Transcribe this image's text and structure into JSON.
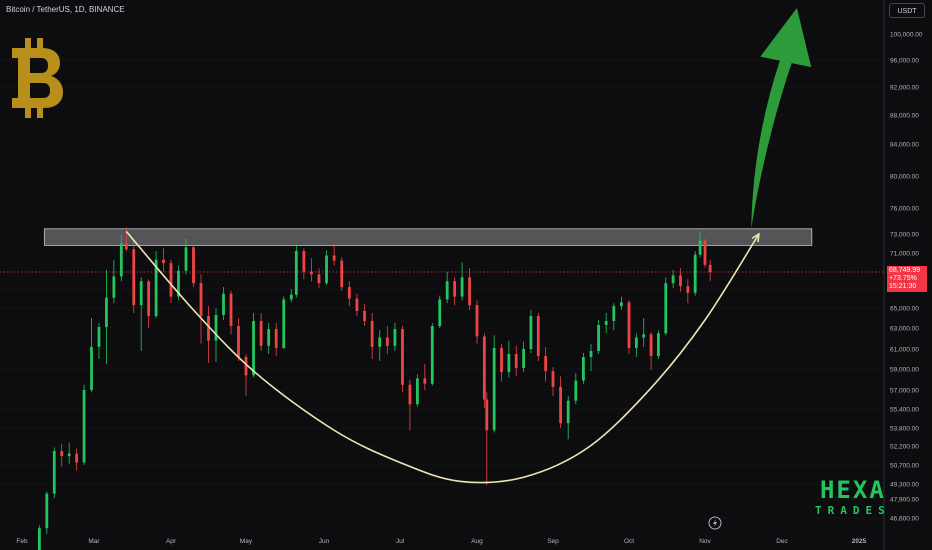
{
  "header": {
    "symbol_title": "Bitcoin / TetherUS, 1D, BINANCE",
    "currency_button": "USDT"
  },
  "price_tag": {
    "price": "68,749.99",
    "change": "+73.75%",
    "timer": "15:21:30"
  },
  "brand": {
    "line1": "HEXA",
    "line2": "TRADES",
    "logo_icon": "bitcoin-logo-icon",
    "platform_icon": "tradingview-icon"
  },
  "colors": {
    "background": "#0d0d0f",
    "up": "#22c55e",
    "down": "#ef4444",
    "resistance_zone": "#8f9094",
    "cup_curve": "#f0e6b4",
    "arrow": "#2e9b3a",
    "btc_logo": "#b98f1c",
    "last_price_line": "#f23645"
  },
  "chart_data": {
    "type": "candlestick",
    "symbol": "Bitcoin / TetherUS",
    "interval": "1D",
    "exchange": "BINANCE",
    "x_ticks": [
      "Feb",
      "Mar",
      "Apr",
      "May",
      "Jun",
      "Jul",
      "Aug",
      "Sep",
      "Oct",
      "Nov",
      "Dec",
      "2025"
    ],
    "y_ticks": [
      100000,
      96000,
      92000,
      88000,
      84000,
      80000,
      76000,
      73000,
      71000,
      68749.99,
      67000,
      65000,
      63000,
      61000,
      59000,
      57000,
      55400,
      53800,
      52200,
      50700,
      49300,
      47900,
      46600
    ],
    "y_tick_labels": [
      "100,000.00",
      "96,000.00",
      "92,000.00",
      "88,000.00",
      "84,000.00",
      "80,000.00",
      "76,000.00",
      "73,000.00",
      "71,000.00",
      "68,749.99",
      "67,000.00",
      "65,000.00",
      "63,000.00",
      "61,000.00",
      "59,000.00",
      "57,000.00",
      "55,400.00",
      "53,800.00",
      "52,200.00",
      "50,700.00",
      "49,300.00",
      "47,900.00",
      "46,600.00"
    ],
    "last_price": 68749.99,
    "ohlc": [
      [
        "2024-02-05",
        43000,
        44000,
        42600,
        43800
      ],
      [
        "2024-02-08",
        43800,
        46100,
        43600,
        45900
      ],
      [
        "2024-02-11",
        45900,
        48600,
        45500,
        48400
      ],
      [
        "2024-02-14",
        48400,
        52100,
        48000,
        51800
      ],
      [
        "2024-02-17",
        51800,
        52400,
        50600,
        51400
      ],
      [
        "2024-02-20",
        51400,
        52500,
        50800,
        51600
      ],
      [
        "2024-02-23",
        51600,
        52000,
        50300,
        50900
      ],
      [
        "2024-02-26",
        50900,
        57500,
        50700,
        57000
      ],
      [
        "2024-02-29",
        57000,
        64000,
        56800,
        61200
      ],
      [
        "2024-03-03",
        61200,
        63500,
        60000,
        63100
      ],
      [
        "2024-03-06",
        63100,
        69000,
        59500,
        66100
      ],
      [
        "2024-03-09",
        66100,
        70200,
        65500,
        68300
      ],
      [
        "2024-03-12",
        68300,
        72900,
        67800,
        72000
      ],
      [
        "2024-03-14",
        72000,
        73750,
        71200,
        71400
      ],
      [
        "2024-03-17",
        71400,
        72300,
        64500,
        65300
      ],
      [
        "2024-03-20",
        65300,
        68200,
        60800,
        67800
      ],
      [
        "2024-03-23",
        67800,
        68000,
        63000,
        64200
      ],
      [
        "2024-03-26",
        64200,
        71200,
        64000,
        70200
      ],
      [
        "2024-03-29",
        70200,
        71500,
        68800,
        69800
      ],
      [
        "2024-04-01",
        69800,
        70200,
        65500,
        66200
      ],
      [
        "2024-04-04",
        66200,
        69500,
        65800,
        68900
      ],
      [
        "2024-04-07",
        68900,
        72500,
        68500,
        71600
      ],
      [
        "2024-04-10",
        71600,
        71800,
        67200,
        67600
      ],
      [
        "2024-04-13",
        67600,
        68500,
        61500,
        64200
      ],
      [
        "2024-04-16",
        64200,
        65200,
        59600,
        61800
      ],
      [
        "2024-04-19",
        61800,
        65000,
        59700,
        64300
      ],
      [
        "2024-04-22",
        64300,
        67200,
        63800,
        66500
      ],
      [
        "2024-04-25",
        66500,
        66800,
        62400,
        63200
      ],
      [
        "2024-04-28",
        63200,
        64000,
        59800,
        60200
      ],
      [
        "2024-05-01",
        60200,
        60500,
        56500,
        58400
      ],
      [
        "2024-05-04",
        58400,
        64500,
        58200,
        63700
      ],
      [
        "2024-05-07",
        63700,
        64500,
        60800,
        61300
      ],
      [
        "2024-05-10",
        61300,
        63500,
        60500,
        62900
      ],
      [
        "2024-05-13",
        62900,
        63500,
        60300,
        61100
      ],
      [
        "2024-05-16",
        61100,
        66200,
        61000,
        65900
      ],
      [
        "2024-05-19",
        65900,
        67000,
        65600,
        66400
      ],
      [
        "2024-05-21",
        66400,
        71900,
        66100,
        71200
      ],
      [
        "2024-05-24",
        71200,
        71500,
        68000,
        68800
      ],
      [
        "2024-05-27",
        68800,
        70400,
        67800,
        68500
      ],
      [
        "2024-05-30",
        68500,
        69200,
        67100,
        67600
      ],
      [
        "2024-06-02",
        67600,
        71300,
        67400,
        70700
      ],
      [
        "2024-06-05",
        70700,
        71900,
        69500,
        70100
      ],
      [
        "2024-06-08",
        70100,
        70500,
        66800,
        67200
      ],
      [
        "2024-06-11",
        67200,
        67800,
        65200,
        66000
      ],
      [
        "2024-06-14",
        66000,
        66500,
        64200,
        64700
      ],
      [
        "2024-06-17",
        64700,
        65400,
        63200,
        63700
      ],
      [
        "2024-06-20",
        63700,
        64500,
        60000,
        61200
      ],
      [
        "2024-06-23",
        61200,
        62800,
        59800,
        62100
      ],
      [
        "2024-06-26",
        62100,
        63200,
        60500,
        61300
      ],
      [
        "2024-06-29",
        61300,
        63500,
        60800,
        62900
      ],
      [
        "2024-07-02",
        62900,
        63200,
        56800,
        57500
      ],
      [
        "2024-07-05",
        57500,
        58000,
        53600,
        55800
      ],
      [
        "2024-07-08",
        55800,
        58500,
        55600,
        58100
      ],
      [
        "2024-07-11",
        58100,
        59500,
        57000,
        57600
      ],
      [
        "2024-07-14",
        57600,
        63500,
        57400,
        63200
      ],
      [
        "2024-07-17",
        63200,
        66300,
        63000,
        65900
      ],
      [
        "2024-07-20",
        65900,
        68800,
        65500,
        67800
      ],
      [
        "2024-07-23",
        67800,
        68200,
        65300,
        66200
      ],
      [
        "2024-07-26",
        66200,
        69900,
        65800,
        68200
      ],
      [
        "2024-07-29",
        68200,
        69200,
        64800,
        65300
      ],
      [
        "2024-08-01",
        65300,
        65800,
        61500,
        62200
      ],
      [
        "2024-08-04",
        62200,
        62500,
        55500,
        56200
      ],
      [
        "2024-08-05",
        56200,
        56800,
        49200,
        53600
      ],
      [
        "2024-08-08",
        53600,
        62300,
        53400,
        61100
      ],
      [
        "2024-08-11",
        61100,
        61500,
        57800,
        58700
      ],
      [
        "2024-08-14",
        58700,
        61800,
        58200,
        60500
      ],
      [
        "2024-08-17",
        60500,
        61300,
        58300,
        59100
      ],
      [
        "2024-08-20",
        59100,
        61700,
        58700,
        61000
      ],
      [
        "2024-08-23",
        61000,
        64800,
        60600,
        64200
      ],
      [
        "2024-08-26",
        64200,
        64500,
        59800,
        60300
      ],
      [
        "2024-08-29",
        60300,
        61200,
        57800,
        58800
      ],
      [
        "2024-09-01",
        58800,
        59200,
        56500,
        57300
      ],
      [
        "2024-09-04",
        57300,
        58300,
        53800,
        54200
      ],
      [
        "2024-09-07",
        54200,
        56500,
        52800,
        56100
      ],
      [
        "2024-09-10",
        56100,
        58600,
        55800,
        57900
      ],
      [
        "2024-09-13",
        57900,
        60600,
        57600,
        60200
      ],
      [
        "2024-09-16",
        60200,
        61500,
        58800,
        60800
      ],
      [
        "2024-09-19",
        60800,
        63800,
        60500,
        63300
      ],
      [
        "2024-09-22",
        63300,
        64500,
        62500,
        63700
      ],
      [
        "2024-09-25",
        63700,
        65500,
        62800,
        65200
      ],
      [
        "2024-09-28",
        65200,
        66200,
        64800,
        65600
      ],
      [
        "2024-10-01",
        65600,
        65800,
        60500,
        61100
      ],
      [
        "2024-10-04",
        61100,
        62500,
        60200,
        62100
      ],
      [
        "2024-10-07",
        62100,
        64000,
        61200,
        62400
      ],
      [
        "2024-10-10",
        62400,
        62600,
        58900,
        60300
      ],
      [
        "2024-10-13",
        60300,
        62800,
        60000,
        62500
      ],
      [
        "2024-10-16",
        62500,
        68200,
        62300,
        67600
      ],
      [
        "2024-10-19",
        67600,
        69000,
        67100,
        68400
      ],
      [
        "2024-10-22",
        68400,
        69200,
        66700,
        67300
      ],
      [
        "2024-10-25",
        67300,
        68000,
        65500,
        66600
      ],
      [
        "2024-10-28",
        66600,
        71200,
        66300,
        70800
      ],
      [
        "2024-10-30",
        70800,
        73300,
        70500,
        72300
      ],
      [
        "2024-11-01",
        72300,
        72500,
        69300,
        69600
      ],
      [
        "2024-11-03",
        69600,
        70200,
        67800,
        68749.99
      ]
    ],
    "annotations": {
      "resistance_zone": {
        "from": 71800,
        "to": 73600,
        "x_start": "2024-02-10",
        "x_end": "2024-12-13"
      },
      "cup_curve": [
        [
          "2024-03-14",
          73300
        ],
        [
          "2024-04-10",
          64800
        ],
        [
          "2024-05-05",
          58600
        ],
        [
          "2024-06-05",
          53600
        ],
        [
          "2024-07-01",
          50900
        ],
        [
          "2024-07-25",
          49500
        ],
        [
          "2024-08-20",
          49800
        ],
        [
          "2024-09-15",
          52100
        ],
        [
          "2024-10-10",
          57200
        ],
        [
          "2024-11-01",
          63800
        ],
        [
          "2024-11-22",
          73000
        ]
      ],
      "breakout_arrow": {
        "from": [
          "2024-11-19",
          73600
        ],
        "to": [
          "2024-12-07",
          104000
        ]
      }
    }
  }
}
